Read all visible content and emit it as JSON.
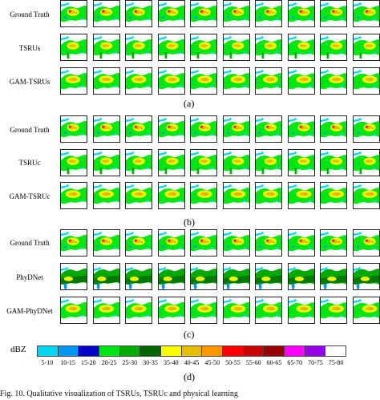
{
  "colors": {
    "b5": "#00d7f0",
    "b10": "#0096f0",
    "b15": "#0000c8",
    "b20": "#00e614",
    "b25": "#00aa00",
    "b30": "#006400",
    "b35": "#fafa00",
    "b40": "#e6be00",
    "b45": "#ff9600",
    "b50": "#ff0000",
    "b55": "#c80000",
    "b60": "#960000",
    "b65": "#ff00ff",
    "b70": "#9600e6",
    "b75": "#ffffff"
  },
  "groups": [
    {
      "caption": "(a)",
      "rows": [
        {
          "label": "Ground Truth",
          "style": "gt"
        },
        {
          "label": "TSRUs",
          "style": "model"
        },
        {
          "label": "GAM-TSRUs",
          "style": "gam"
        }
      ]
    },
    {
      "caption": "(b)",
      "rows": [
        {
          "label": "Ground Truth",
          "style": "gt"
        },
        {
          "label": "TSRUc",
          "style": "model"
        },
        {
          "label": "GAM-TSRUc",
          "style": "gam"
        }
      ]
    },
    {
      "caption": "(c)",
      "rows": [
        {
          "label": "Ground Truth",
          "style": "gt"
        },
        {
          "label": "PhyDNet",
          "style": "phy"
        },
        {
          "label": "GAM-PhyDNet",
          "style": "gam"
        }
      ]
    }
  ],
  "colorbar": {
    "unit": "dBZ",
    "bins": [
      "5-10",
      "10-15",
      "15-20",
      "20-25",
      "25-30",
      "30-35",
      "35-40",
      "40-45",
      "45-50",
      "50-55",
      "55-60",
      "60-65",
      "65-70",
      "70-75",
      "75-80"
    ],
    "colors": [
      "#00d7f0",
      "#0096f0",
      "#0000c8",
      "#00e614",
      "#00aa00",
      "#006400",
      "#fafa00",
      "#e6be00",
      "#ff9600",
      "#ff0000",
      "#c80000",
      "#960000",
      "#ff00ff",
      "#9600e6",
      "#ffffff"
    ],
    "caption": "(d)"
  },
  "bottom_text": "Fig. 10. Qualitative visualization of TSRUs, TSRUc and physical learning"
}
